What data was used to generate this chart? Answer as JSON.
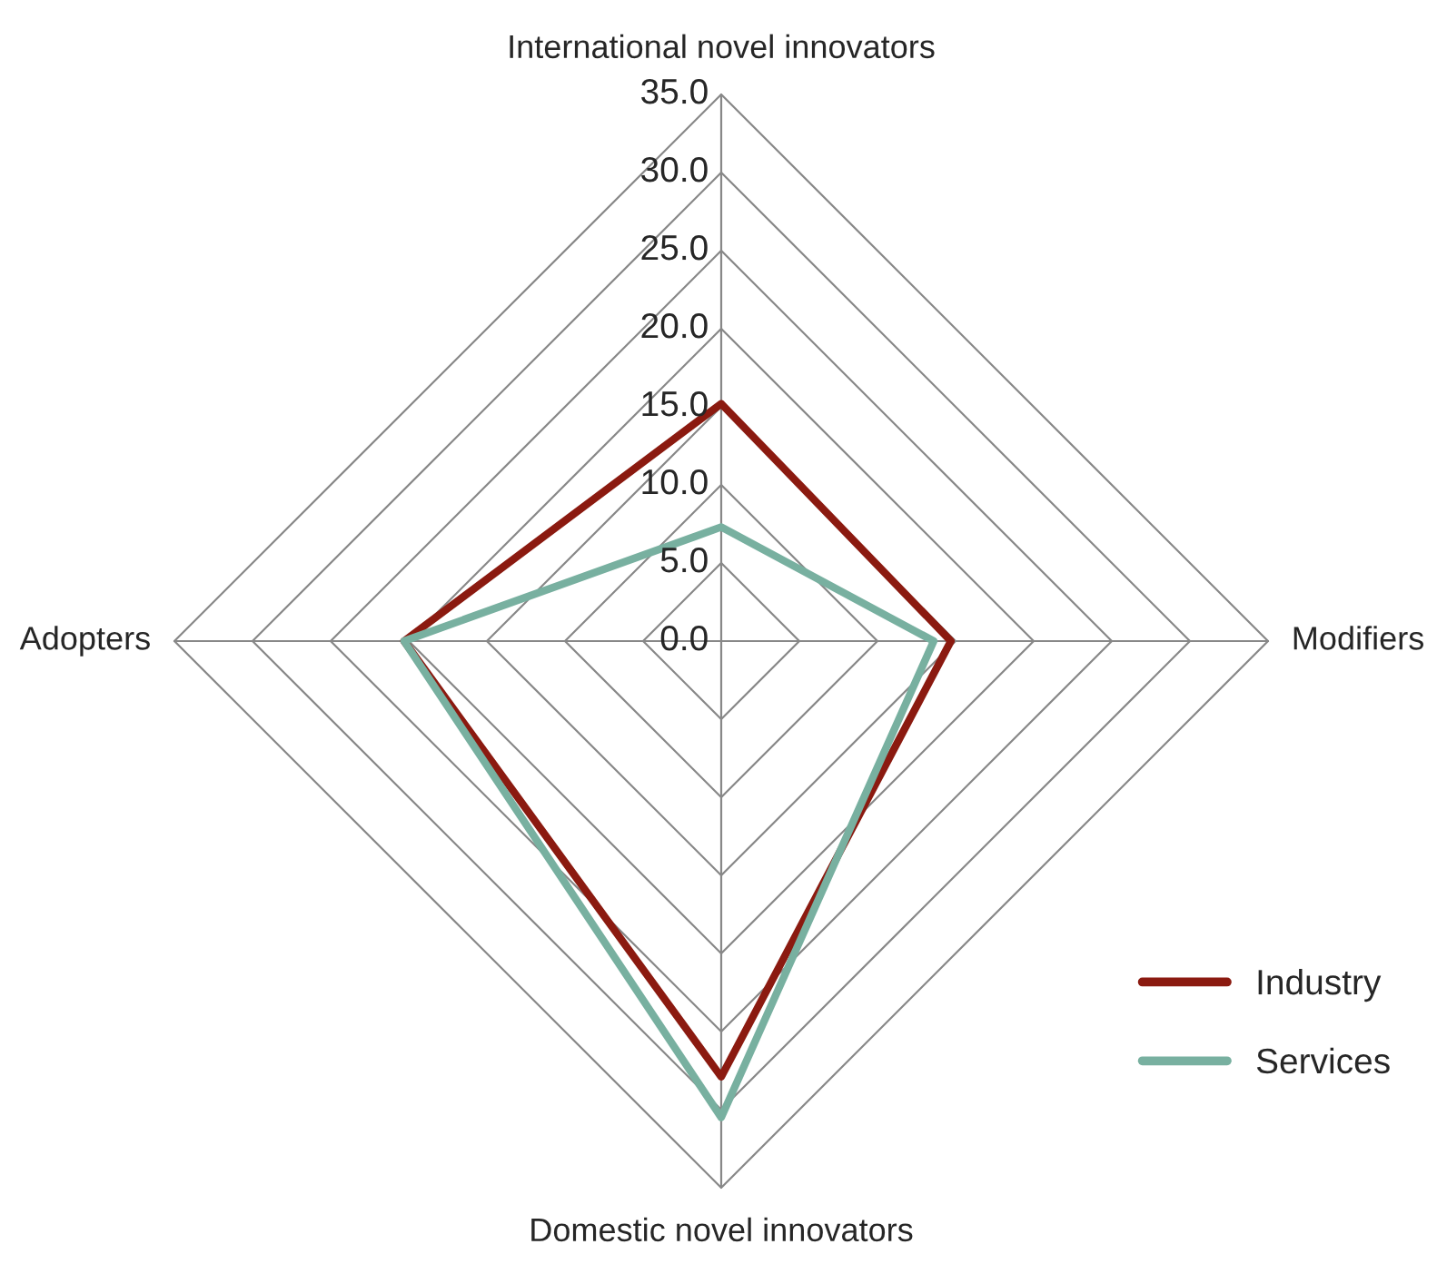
{
  "chart_data": {
    "type": "radar",
    "categories": [
      "International novel innovators",
      "Modifiers",
      "Domestic novel innovators",
      "Adopters"
    ],
    "series": [
      {
        "name": "Industry",
        "color": "#8b1a10",
        "values": [
          15.2,
          14.7,
          27.9,
          20.3
        ]
      },
      {
        "name": "Services",
        "color": "#78b0a0",
        "values": [
          7.3,
          13.6,
          30.5,
          20.3
        ]
      }
    ],
    "ylim": [
      0,
      35
    ],
    "yticks": [
      {
        "value": 0,
        "label": "0.0"
      },
      {
        "value": 5,
        "label": "5.0"
      },
      {
        "value": 10,
        "label": "10.0"
      },
      {
        "value": 15,
        "label": "15.0"
      },
      {
        "value": 20,
        "label": "20.0"
      },
      {
        "value": 25,
        "label": "25.0"
      },
      {
        "value": 30,
        "label": "30.0"
      },
      {
        "value": 35,
        "label": "35.0"
      }
    ],
    "grid": true,
    "legend": "bottom right"
  }
}
